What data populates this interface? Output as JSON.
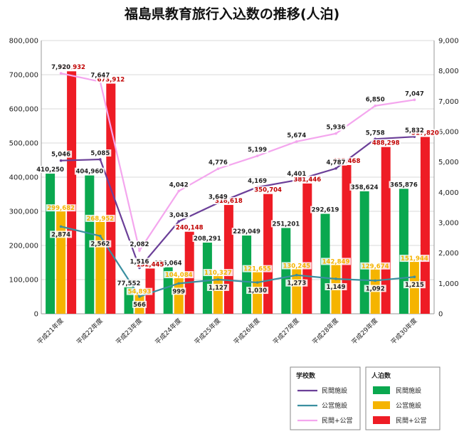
{
  "chart_data": {
    "type": "bar",
    "title": "福島県教育旅行入込数の推移(人泊)",
    "categories": [
      "平成21年度",
      "平成22年度",
      "平成23年度",
      "平成24年度",
      "平成25年度",
      "平成26年度",
      "平成27年度",
      "平成28年度",
      "平成29年度",
      "平成30年度"
    ],
    "ylim_left": [
      0,
      800000
    ],
    "ylim_right": [
      0,
      9000
    ],
    "left_ticks": [
      "0",
      "100,000",
      "200,000",
      "300,000",
      "400,000",
      "500,000",
      "600,000",
      "700,000",
      "800,000"
    ],
    "right_ticks": [
      "0",
      "1,000",
      "2,000",
      "3,000",
      "4,000",
      "5,000",
      "6,000",
      "7,000",
      "8,000",
      "9,000"
    ],
    "bar_series": [
      {
        "name": "民間施設",
        "color": "#0aa84f",
        "values": [
          410250,
          404960,
          77552,
          136064,
          208291,
          229049,
          251201,
          292619,
          358624,
          365876
        ],
        "labels": [
          "410,250",
          "404,960",
          "77,552",
          "136,064",
          "208,291",
          "229,049",
          "251,201",
          "292,619",
          "358,624",
          "365,876"
        ],
        "label_color": "#222222"
      },
      {
        "name": "公営施設",
        "color": "#f5b400",
        "values": [
          299682,
          268952,
          54893,
          104084,
          110327,
          121655,
          130245,
          142849,
          129674,
          151944
        ],
        "labels": [
          "299,682",
          "268,952",
          "54,893",
          "104,084",
          "110,327",
          "121,655",
          "130,245",
          "142,849",
          "129,674",
          "151,944"
        ],
        "label_color": "#f5b400"
      },
      {
        "name": "民間+公営",
        "color": "#ee1c25",
        "values": [
          709932,
          673912,
          132445,
          240148,
          318618,
          350704,
          381446,
          435468,
          488298,
          517820
        ],
        "labels": [
          "709,932",
          "673,912",
          "132,445",
          "240,148",
          "318,618",
          "350,704",
          "381,446",
          "435,468",
          "488,298",
          "517,820"
        ],
        "label_color": "#c00000"
      }
    ],
    "line_series": [
      {
        "name": "民間施設",
        "color": "#6b3f98",
        "values": [
          5046,
          5085,
          1516,
          3043,
          3649,
          4169,
          4401,
          4787,
          5758,
          5832
        ],
        "labels": [
          "5,046",
          "5,085",
          "1,516",
          "3,043",
          "3,649",
          "4,169",
          "4,401",
          "4,787",
          "5,758",
          "5,832"
        ]
      },
      {
        "name": "公営施設",
        "color": "#3a8fa0",
        "values": [
          2874,
          2562,
          566,
          999,
          1127,
          1030,
          1273,
          1149,
          1092,
          1215
        ],
        "labels": [
          "2,874",
          "2,562",
          "566",
          "999",
          "1,127",
          "1,030",
          "1,273",
          "1,149",
          "1,092",
          "1,215"
        ]
      },
      {
        "name": "民間+公営",
        "color": "#f4a6ee",
        "values": [
          7920,
          7647,
          2082,
          4042,
          4776,
          5199,
          5674,
          5936,
          6850,
          7047
        ],
        "labels": [
          "7,920",
          "7,647",
          "2,082",
          "4,042",
          "4,776",
          "5,199",
          "5,674",
          "5,936",
          "6,850",
          "7,047"
        ]
      }
    ],
    "legend": {
      "line_title": "学校数",
      "bar_title": "人泊数",
      "placement": "bottom-right"
    },
    "grid": true
  }
}
